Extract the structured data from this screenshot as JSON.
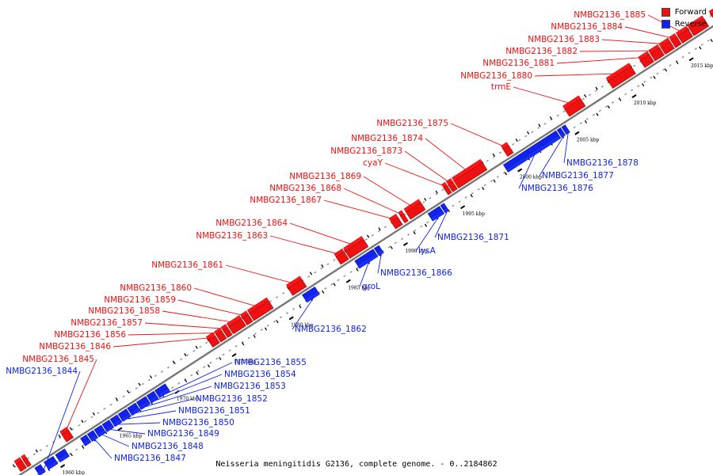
{
  "legend": {
    "forward_label": "Forward",
    "reverse_label": "Reverse",
    "forward_color": "#ee1111",
    "reverse_color": "#1122ee"
  },
  "caption": "Neisseria meningitidis G2136, complete genome. - 0..2184862",
  "axis": {
    "start_kbp": 1957,
    "end_kbp": 2018,
    "tick_labels": [
      "1960 kbp",
      "1965 kbp",
      "1970 kbp",
      "1975 kbp",
      "1980 kbp",
      "1985 kbp",
      "1990 kbp",
      "1995 kbp",
      "2000 kbp",
      "2005 kbp",
      "2010 kbp",
      "2015 kbp"
    ],
    "tick_values": [
      1960,
      1965,
      1970,
      1975,
      1980,
      1985,
      1990,
      1995,
      2000,
      2005,
      2010,
      2015
    ]
  },
  "genes": [
    {
      "name": "NMBG2136_1844",
      "strand": "reverse",
      "start": 1958.2,
      "end": 1958.7
    },
    {
      "name": "NMBG2136_1845",
      "strand": "forward",
      "start": 1961.2,
      "end": 1961.8
    },
    {
      "name": "NMBG2136_1846",
      "strand": "forward",
      "start": 1974.0,
      "end": 1974.6
    },
    {
      "name": "NMBG2136_1847",
      "strand": "reverse",
      "start": 1962.8,
      "end": 1963.3
    },
    {
      "name": "NMBG2136_1848",
      "strand": "reverse",
      "start": 1963.4,
      "end": 1964.0
    },
    {
      "name": "NMBG2136_1849",
      "strand": "reverse",
      "start": 1964.1,
      "end": 1964.7
    },
    {
      "name": "NMBG2136_1850",
      "strand": "reverse",
      "start": 1964.8,
      "end": 1965.4
    },
    {
      "name": "NMBG2136_1851",
      "strand": "reverse",
      "start": 1965.5,
      "end": 1966.2
    },
    {
      "name": "NMBG2136_1852",
      "strand": "reverse",
      "start": 1966.3,
      "end": 1967.0
    },
    {
      "name": "NMBG2136_1853",
      "strand": "reverse",
      "start": 1967.1,
      "end": 1967.9
    },
    {
      "name": "NMBG2136_1854",
      "strand": "reverse",
      "start": 1968.0,
      "end": 1968.6
    },
    {
      "name": "NMBG2136_1855",
      "strand": "reverse",
      "start": 1968.7,
      "end": 1969.6
    },
    {
      "name": "NMBG2136_1856",
      "strand": "forward",
      "start": 1974.7,
      "end": 1975.2
    },
    {
      "name": "NMBG2136_1857",
      "strand": "forward",
      "start": 1975.3,
      "end": 1975.7
    },
    {
      "name": "NMBG2136_1858",
      "strand": "forward",
      "start": 1975.8,
      "end": 1976.9
    },
    {
      "name": "NMBG2136_1859",
      "strand": "forward",
      "start": 1977.0,
      "end": 1977.5
    },
    {
      "name": "NMBG2136_1860",
      "strand": "forward",
      "start": 1977.6,
      "end": 1979.3
    },
    {
      "name": "NMBG2136_1861",
      "strand": "forward",
      "start": 1981.0,
      "end": 1982.2
    },
    {
      "name": "NMBG2136_1862",
      "strand": "reverse",
      "start": 1981.6,
      "end": 1982.7
    },
    {
      "name": "NMBG2136_1863",
      "strand": "forward",
      "start": 1985.2,
      "end": 1985.9
    },
    {
      "name": "NMBG2136_1864",
      "strand": "forward",
      "start": 1986.0,
      "end": 1987.6
    },
    {
      "name": "groL",
      "strand": "reverse",
      "start": 1986.2,
      "end": 1987.8
    },
    {
      "name": "NMBG2136_1866",
      "strand": "reverse",
      "start": 1987.9,
      "end": 1988.3
    },
    {
      "name": "NMBG2136_1867",
      "strand": "forward",
      "start": 1990.0,
      "end": 1990.6
    },
    {
      "name": "NMBG2136_1868",
      "strand": "forward",
      "start": 1990.8,
      "end": 1991.1
    },
    {
      "name": "NMBG2136_1869",
      "strand": "forward",
      "start": 1991.3,
      "end": 1992.6
    },
    {
      "name": "lysA",
      "strand": "reverse",
      "start": 1992.6,
      "end": 1993.6
    },
    {
      "name": "NMBG2136_1871",
      "strand": "reverse",
      "start": 1993.7,
      "end": 1994.0
    },
    {
      "name": "cyaY",
      "strand": "forward",
      "start": 1994.6,
      "end": 1994.9
    },
    {
      "name": "NMBG2136_1873",
      "strand": "forward",
      "start": 1995.0,
      "end": 1995.4
    },
    {
      "name": "NMBG2136_1874",
      "strand": "forward",
      "start": 1995.5,
      "end": 1998.0
    },
    {
      "name": "NMBG2136_1875",
      "strand": "forward",
      "start": 1999.8,
      "end": 2000.3
    },
    {
      "name": "NMBG2136_1876",
      "strand": "reverse",
      "start": 1999.2,
      "end": 2003.8
    },
    {
      "name": "NMBG2136_1877",
      "strand": "reverse",
      "start": 2003.9,
      "end": 2004.2
    },
    {
      "name": "NMBG2136_1878",
      "strand": "reverse",
      "start": 2004.3,
      "end": 2004.6
    },
    {
      "name": "trmE",
      "strand": "forward",
      "start": 2005.2,
      "end": 2006.6
    },
    {
      "name": "NMBG2136_1880",
      "strand": "forward",
      "start": 2009.0,
      "end": 2011.0
    },
    {
      "name": "NMBG2136_1881",
      "strand": "forward",
      "start": 2011.8,
      "end": 2012.6
    },
    {
      "name": "NMBG2136_1882",
      "strand": "forward",
      "start": 2012.7,
      "end": 2013.5
    },
    {
      "name": "NMBG2136_1883",
      "strand": "forward",
      "start": 2013.6,
      "end": 2014.4
    },
    {
      "name": "NMBG2136_1884",
      "strand": "forward",
      "start": 2014.5,
      "end": 2015.0
    },
    {
      "name": "NMBG2136_1885",
      "strand": "forward",
      "start": 2015.1,
      "end": 2016.0
    },
    {
      "name": "",
      "strand": "forward",
      "start": 2016.1,
      "end": 2017.4
    },
    {
      "name": "",
      "strand": "forward",
      "start": 2018.0,
      "end": 2019.8
    },
    {
      "name": "",
      "strand": "reverse",
      "start": 2017.6,
      "end": 2017.9
    },
    {
      "name": "",
      "strand": "forward",
      "start": 1957.2,
      "end": 1957.7
    },
    {
      "name": "",
      "strand": "forward",
      "start": 1957.8,
      "end": 1958.1
    },
    {
      "name": "",
      "strand": "reverse",
      "start": 1959.0,
      "end": 1959.8
    },
    {
      "name": "",
      "strand": "reverse",
      "start": 1960.0,
      "end": 1960.8
    },
    {
      "name": "",
      "strand": "reverse",
      "start": 1962.2,
      "end": 1962.7
    }
  ]
}
